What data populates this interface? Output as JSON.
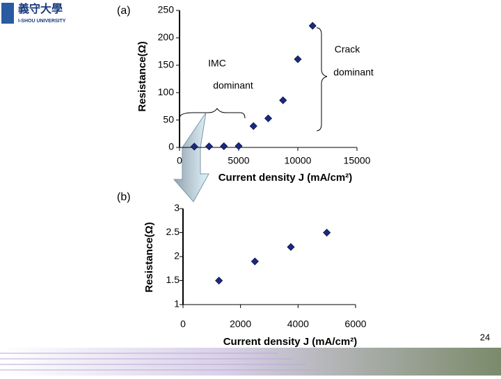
{
  "slide": {
    "logo_name": "義守大學",
    "logo_subtitle": "I-SHOU UNIVERSITY",
    "page_number": "24"
  },
  "chart_data": [
    {
      "type": "scatter",
      "panel_label": "(a)",
      "x_label": "Current density J (mA/cm²)",
      "y_label": "Resistance(Ω)",
      "annotations": [
        "IMC",
        "dominant",
        "Crack",
        "dominant"
      ],
      "x": [
        1250,
        2500,
        3750,
        5000,
        6250,
        7500,
        8750,
        10000,
        11250
      ],
      "values": [
        1.5,
        1.9,
        2.2,
        2.5,
        39,
        53,
        86,
        161,
        222
      ],
      "color": "#1a2a80",
      "xlim": [
        0,
        15000
      ],
      "xticks": [
        0,
        5000,
        10000,
        15000
      ],
      "ylim": [
        0,
        250
      ],
      "yticks": [
        0,
        50,
        100,
        150,
        200,
        250
      ],
      "grid": false
    },
    {
      "type": "scatter",
      "panel_label": "(b)",
      "x_label": "Current density J (mA/cm²)",
      "y_label": "Resistance(Ω)",
      "x": [
        1250,
        2500,
        3750,
        5000
      ],
      "values": [
        1.5,
        1.9,
        2.2,
        2.5
      ],
      "color": "#1a2a80",
      "xlim": [
        0,
        6000
      ],
      "xticks": [
        0,
        2000,
        4000,
        6000
      ],
      "ylim": [
        1,
        3
      ],
      "yticks": [
        1,
        1.5,
        2,
        2.5,
        3
      ],
      "grid": false
    }
  ]
}
